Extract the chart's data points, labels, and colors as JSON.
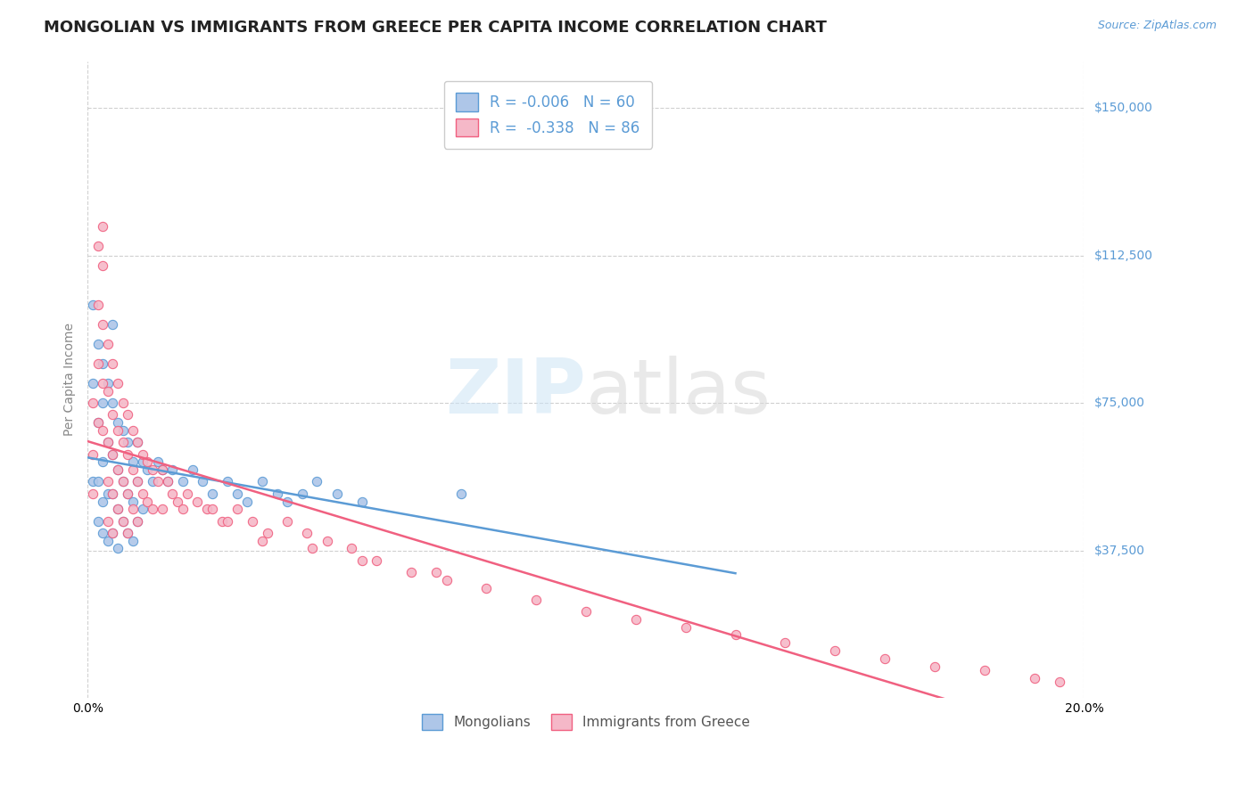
{
  "title": "MONGOLIAN VS IMMIGRANTS FROM GREECE PER CAPITA INCOME CORRELATION CHART",
  "source": "Source: ZipAtlas.com",
  "ylabel": "Per Capita Income",
  "xlim": [
    0.0,
    0.2
  ],
  "ylim": [
    0,
    162000
  ],
  "yticks": [
    37500,
    75000,
    112500,
    150000
  ],
  "ytick_labels": [
    "$37,500",
    "$75,000",
    "$112,500",
    "$150,000"
  ],
  "xticks": [
    0.0,
    0.05,
    0.1,
    0.15,
    0.2
  ],
  "xtick_labels": [
    "0.0%",
    "",
    "",
    "",
    "20.0%"
  ],
  "color_mongolian": "#aec6e8",
  "color_greece": "#f5b8c8",
  "line_color_mongolian": "#5b9bd5",
  "line_color_greece": "#f06080",
  "grid_color": "#d0d0d0",
  "background_color": "#ffffff",
  "title_fontsize": 13,
  "tick_fontsize": 10,
  "source_fontsize": 9,
  "mongolian_x": [
    0.001,
    0.001,
    0.001,
    0.002,
    0.002,
    0.002,
    0.002,
    0.003,
    0.003,
    0.003,
    0.003,
    0.003,
    0.004,
    0.004,
    0.004,
    0.004,
    0.005,
    0.005,
    0.005,
    0.005,
    0.005,
    0.006,
    0.006,
    0.006,
    0.006,
    0.007,
    0.007,
    0.007,
    0.008,
    0.008,
    0.008,
    0.009,
    0.009,
    0.009,
    0.01,
    0.01,
    0.01,
    0.011,
    0.011,
    0.012,
    0.013,
    0.014,
    0.015,
    0.016,
    0.017,
    0.019,
    0.021,
    0.023,
    0.025,
    0.028,
    0.03,
    0.032,
    0.035,
    0.038,
    0.04,
    0.043,
    0.046,
    0.05,
    0.055,
    0.075
  ],
  "mongolian_y": [
    55000,
    80000,
    100000,
    90000,
    70000,
    55000,
    45000,
    85000,
    75000,
    60000,
    50000,
    42000,
    80000,
    65000,
    52000,
    40000,
    95000,
    75000,
    62000,
    52000,
    42000,
    70000,
    58000,
    48000,
    38000,
    68000,
    55000,
    45000,
    65000,
    52000,
    42000,
    60000,
    50000,
    40000,
    65000,
    55000,
    45000,
    60000,
    48000,
    58000,
    55000,
    60000,
    58000,
    55000,
    58000,
    55000,
    58000,
    55000,
    52000,
    55000,
    52000,
    50000,
    55000,
    52000,
    50000,
    52000,
    55000,
    52000,
    50000,
    52000
  ],
  "greece_x": [
    0.001,
    0.001,
    0.001,
    0.002,
    0.002,
    0.002,
    0.002,
    0.003,
    0.003,
    0.003,
    0.003,
    0.003,
    0.004,
    0.004,
    0.004,
    0.004,
    0.004,
    0.005,
    0.005,
    0.005,
    0.005,
    0.005,
    0.006,
    0.006,
    0.006,
    0.006,
    0.007,
    0.007,
    0.007,
    0.007,
    0.008,
    0.008,
    0.008,
    0.008,
    0.009,
    0.009,
    0.009,
    0.01,
    0.01,
    0.01,
    0.011,
    0.011,
    0.012,
    0.012,
    0.013,
    0.013,
    0.014,
    0.015,
    0.015,
    0.016,
    0.017,
    0.018,
    0.019,
    0.02,
    0.022,
    0.024,
    0.027,
    0.03,
    0.033,
    0.036,
    0.04,
    0.044,
    0.048,
    0.053,
    0.058,
    0.065,
    0.072,
    0.08,
    0.09,
    0.1,
    0.11,
    0.12,
    0.13,
    0.14,
    0.15,
    0.16,
    0.17,
    0.18,
    0.19,
    0.195,
    0.025,
    0.028,
    0.035,
    0.045,
    0.055,
    0.07
  ],
  "greece_y": [
    75000,
    62000,
    52000,
    115000,
    100000,
    85000,
    70000,
    120000,
    110000,
    95000,
    80000,
    68000,
    90000,
    78000,
    65000,
    55000,
    45000,
    85000,
    72000,
    62000,
    52000,
    42000,
    80000,
    68000,
    58000,
    48000,
    75000,
    65000,
    55000,
    45000,
    72000,
    62000,
    52000,
    42000,
    68000,
    58000,
    48000,
    65000,
    55000,
    45000,
    62000,
    52000,
    60000,
    50000,
    58000,
    48000,
    55000,
    58000,
    48000,
    55000,
    52000,
    50000,
    48000,
    52000,
    50000,
    48000,
    45000,
    48000,
    45000,
    42000,
    45000,
    42000,
    40000,
    38000,
    35000,
    32000,
    30000,
    28000,
    25000,
    22000,
    20000,
    18000,
    16000,
    14000,
    12000,
    10000,
    8000,
    7000,
    5000,
    4000,
    48000,
    45000,
    40000,
    38000,
    35000,
    32000
  ]
}
